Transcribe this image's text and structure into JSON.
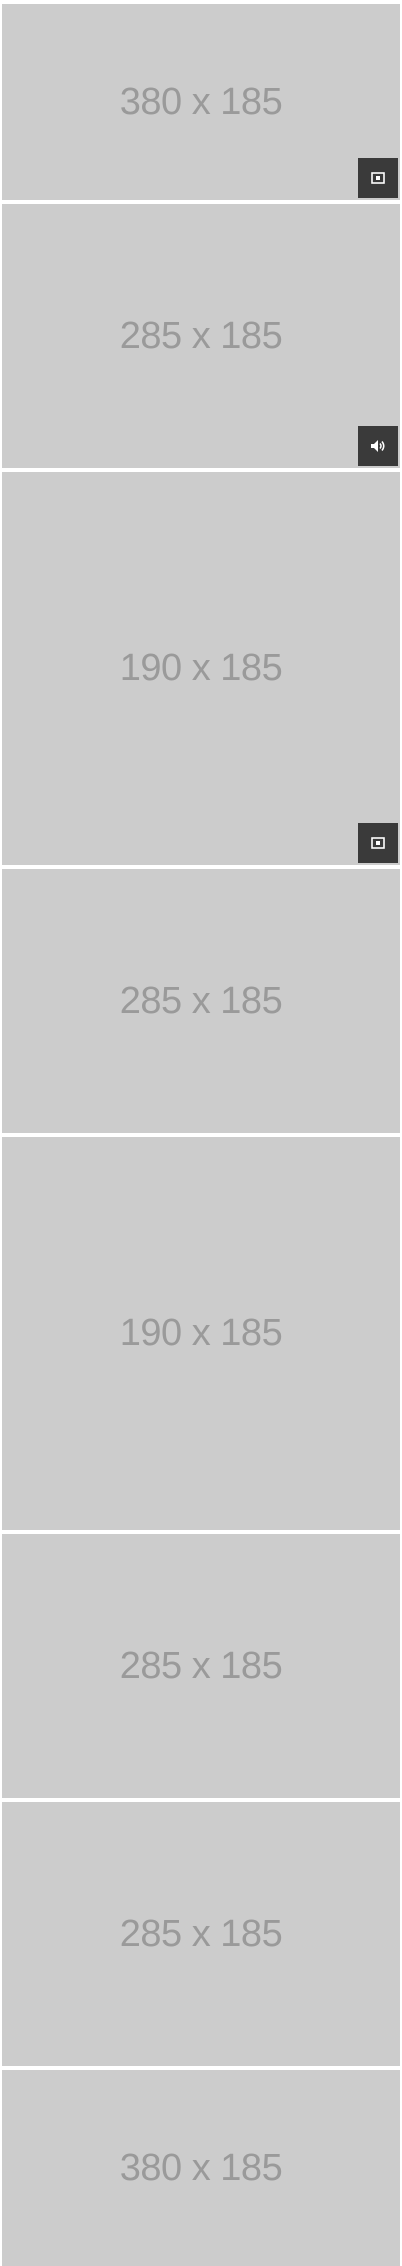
{
  "tiles": [
    {
      "label": "380 x 185",
      "badge_icon": "image-icon"
    },
    {
      "label": "285 x 185",
      "badge_icon": "volume-icon"
    },
    {
      "label": "190 x 185",
      "badge_icon": "image-icon"
    },
    {
      "label": "285 x 185",
      "badge_icon": ""
    },
    {
      "label": "190 x 185",
      "badge_icon": ""
    },
    {
      "label": "285 x 185",
      "badge_icon": ""
    },
    {
      "label": "285 x 185",
      "badge_icon": ""
    },
    {
      "label": "380 x 185",
      "badge_icon": ""
    }
  ],
  "colors": {
    "tile_bg": "#cccccc",
    "label": "#9a9a9a",
    "badge_bg": "#3a3a3a",
    "badge_icon": "#ffffff"
  }
}
